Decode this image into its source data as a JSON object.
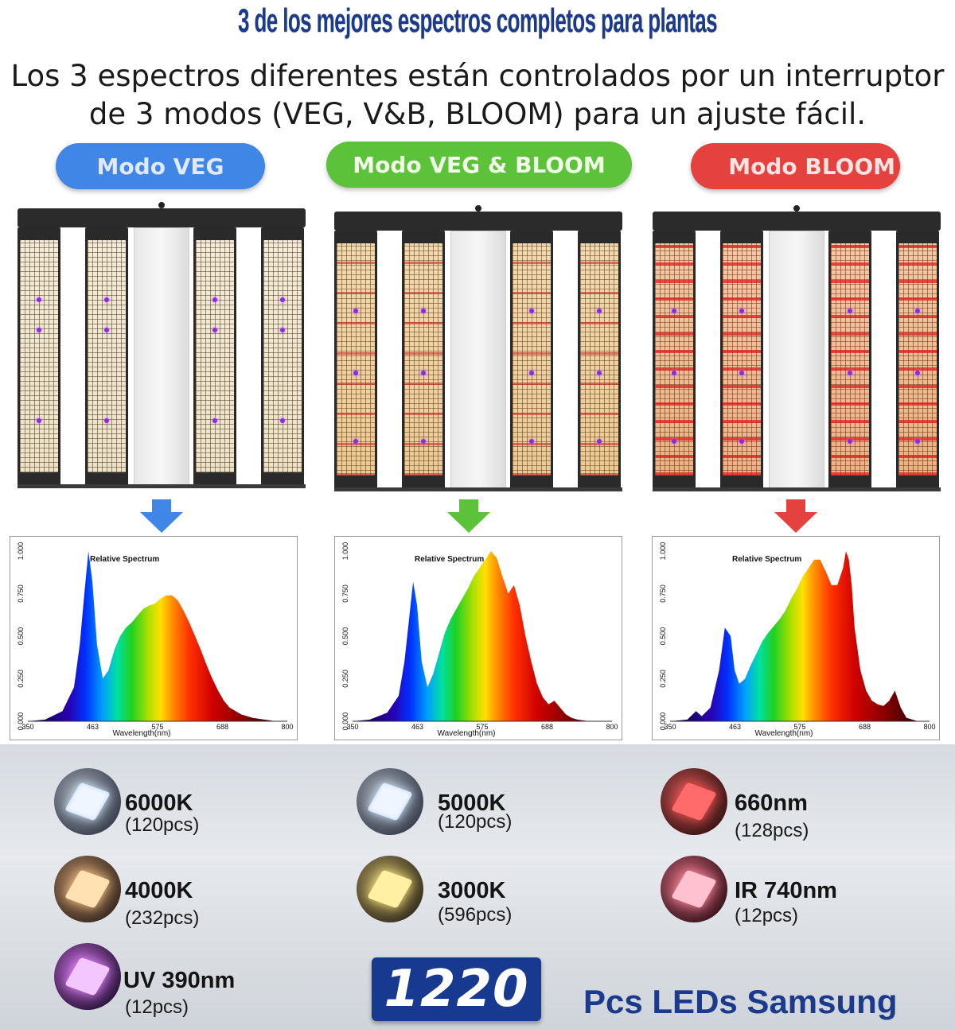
{
  "header": {
    "title": "3 de los mejores espectros completos para plantas",
    "subtitle_line1": "Los 3 espectros diferentes están controlados por un interruptor",
    "subtitle_line2": "de 3 modos (VEG, V&B, BLOOM) para un ajuste fácil."
  },
  "modes": [
    {
      "label": "Modo VEG",
      "color": "#3f86e6"
    },
    {
      "label": "Modo VEG & BLOOM",
      "color": "#5bc23a"
    },
    {
      "label": "Modo BLOOM",
      "color": "#e5413f"
    }
  ],
  "chart_data": [
    {
      "type": "area",
      "title": "Relative Spectrum",
      "xlabel": "Wavelength(nm)",
      "ylabel": "",
      "xlim": [
        350,
        800
      ],
      "ylim": [
        0,
        1
      ],
      "x_ticks": [
        "350",
        "463",
        "575",
        "688",
        "800"
      ],
      "y_ticks": [
        "0.000",
        "0.250",
        "0.500",
        "0.750",
        "1.000"
      ],
      "series": [
        {
          "x": [
            350,
            380,
            410,
            430,
            440,
            448,
            455,
            462,
            470,
            480,
            490,
            500,
            510,
            520,
            530,
            540,
            550,
            560,
            570,
            580,
            590,
            600,
            610,
            620,
            630,
            640,
            650,
            660,
            670,
            680,
            690,
            700,
            720,
            740,
            760,
            780,
            800
          ],
          "y": [
            0.0,
            0.01,
            0.06,
            0.2,
            0.45,
            0.75,
            1.0,
            0.82,
            0.45,
            0.25,
            0.3,
            0.42,
            0.5,
            0.55,
            0.58,
            0.62,
            0.66,
            0.68,
            0.69,
            0.72,
            0.74,
            0.74,
            0.71,
            0.65,
            0.58,
            0.5,
            0.42,
            0.33,
            0.25,
            0.18,
            0.12,
            0.08,
            0.04,
            0.02,
            0.01,
            0.0,
            0.0
          ]
        }
      ]
    },
    {
      "type": "area",
      "title": "Relative Spectrum",
      "xlabel": "Wavelength(nm)",
      "ylabel": "",
      "xlim": [
        350,
        800
      ],
      "ylim": [
        0,
        1
      ],
      "x_ticks": [
        "350",
        "463",
        "575",
        "688",
        "800"
      ],
      "y_ticks": [
        "0.000",
        "0.250",
        "0.500",
        "0.750",
        "1.000"
      ],
      "series": [
        {
          "x": [
            350,
            380,
            410,
            430,
            440,
            448,
            455,
            462,
            470,
            480,
            490,
            500,
            510,
            520,
            530,
            540,
            550,
            560,
            570,
            580,
            590,
            600,
            610,
            620,
            630,
            640,
            650,
            660,
            670,
            680,
            690,
            700,
            710,
            720,
            730,
            740,
            760,
            780,
            800
          ],
          "y": [
            0.0,
            0.01,
            0.05,
            0.15,
            0.35,
            0.6,
            0.82,
            0.68,
            0.35,
            0.2,
            0.28,
            0.4,
            0.52,
            0.6,
            0.66,
            0.72,
            0.78,
            0.85,
            0.9,
            0.95,
            1.0,
            0.96,
            0.85,
            0.75,
            0.8,
            0.68,
            0.5,
            0.35,
            0.22,
            0.14,
            0.1,
            0.12,
            0.08,
            0.04,
            0.02,
            0.01,
            0.0,
            0.0,
            0.0
          ]
        }
      ]
    },
    {
      "type": "area",
      "title": "Relative Spectrum",
      "xlabel": "Wavelength(nm)",
      "ylabel": "",
      "xlim": [
        350,
        800
      ],
      "ylim": [
        0,
        1
      ],
      "x_ticks": [
        "350",
        "463",
        "575",
        "688",
        "800"
      ],
      "y_ticks": [
        "0.000",
        "0.250",
        "0.500",
        "0.750",
        "1.000"
      ],
      "series": [
        {
          "x": [
            350,
            380,
            395,
            405,
            420,
            435,
            445,
            455,
            462,
            470,
            480,
            490,
            500,
            510,
            520,
            530,
            540,
            550,
            560,
            570,
            580,
            590,
            600,
            610,
            620,
            630,
            640,
            650,
            655,
            660,
            665,
            670,
            680,
            690,
            700,
            710,
            720,
            730,
            740,
            750,
            760,
            780,
            800
          ],
          "y": [
            0.0,
            0.01,
            0.06,
            0.03,
            0.08,
            0.3,
            0.55,
            0.5,
            0.3,
            0.22,
            0.25,
            0.33,
            0.4,
            0.47,
            0.52,
            0.56,
            0.6,
            0.65,
            0.72,
            0.78,
            0.85,
            0.9,
            0.95,
            0.95,
            0.88,
            0.8,
            0.8,
            0.9,
            1.0,
            0.95,
            0.8,
            0.55,
            0.3,
            0.18,
            0.12,
            0.1,
            0.09,
            0.12,
            0.18,
            0.08,
            0.02,
            0.0,
            0.0
          ]
        }
      ]
    }
  ],
  "leds": {
    "col1": [
      {
        "name": "6000K",
        "count": "(120pcs)",
        "icon": "white-led-chip-icon"
      },
      {
        "name": "4000K",
        "count": "(232pcs)",
        "icon": "warm-led-chip-icon"
      },
      {
        "name": "UV 390nm",
        "count": "(12pcs)",
        "icon": "uv-led-chip-icon"
      }
    ],
    "col2": [
      {
        "name": "5000K",
        "count": "(120pcs)",
        "icon": "white-led-chip-icon"
      },
      {
        "name": "3000K",
        "count": "(596pcs)",
        "icon": "yellow-led-chip-icon"
      }
    ],
    "col3": [
      {
        "name": "660nm",
        "count": "(128pcs)",
        "icon": "red-led-chip-icon"
      },
      {
        "name": "IR 740nm",
        "count": "(12pcs)",
        "icon": "ir-led-chip-icon"
      }
    ]
  },
  "total": {
    "number": "1220",
    "label": "Pcs LEDs Samsung"
  }
}
